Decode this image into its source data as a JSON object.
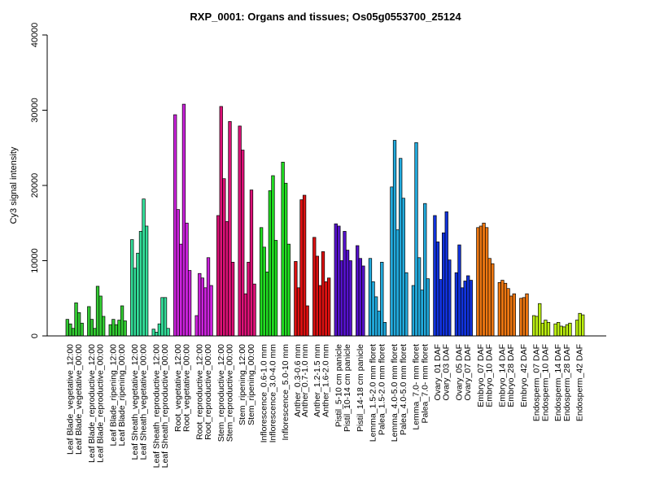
{
  "chart_data": {
    "type": "bar",
    "title": "RXP_0001: Organs and tissues; Os05g0553700_25124",
    "xlabel": "",
    "ylabel": "Cy3 signal intensity",
    "ylim": [
      0,
      40000
    ],
    "yticks": [
      0,
      10000,
      20000,
      30000,
      40000
    ],
    "grid": false,
    "legend": "none",
    "groups": [
      {
        "labels": [
          "Leaf Blade_vegetative_12:00",
          "Leaf Blade_vegetative_00:00"
        ],
        "color": "#33cc33",
        "values": [
          2200,
          1600,
          1000,
          4400,
          3100,
          1700
        ]
      },
      {
        "labels": [
          "Leaf Blade_reproductive_12:00",
          "Leaf Blade_reproductive_00:00"
        ],
        "color": "#33cc33",
        "values": [
          3900,
          2200,
          1000,
          6600,
          5300,
          2600
        ]
      },
      {
        "labels": [
          "Leaf Blade_ripening_12:00",
          "Leaf Blade_ripening_00:00"
        ],
        "color": "#33cc33",
        "values": [
          1500,
          2200,
          1500,
          2100,
          4000,
          2000
        ]
      },
      {
        "labels": [
          "Leaf Sheath_vegetative_12:00",
          "Leaf Sheath_vegetative_00:00"
        ],
        "color": "#33dd99",
        "values": [
          12800,
          9000,
          11000,
          13900,
          18200,
          14600
        ]
      },
      {
        "labels": [
          "Leaf Sheath_reproductive_12:00",
          "Leaf Sheath_reproductive_00:00"
        ],
        "color": "#33dd99",
        "values": [
          900,
          500,
          1600,
          5100,
          5100,
          1000
        ]
      },
      {
        "labels": [
          "Root_vegetative_12:00",
          "Root_vegetative_00:00"
        ],
        "color": "#cc22dd",
        "values": [
          29400,
          16800,
          12200,
          30800,
          15000,
          8700
        ]
      },
      {
        "labels": [
          "Root_reproductive_12:00",
          "Root_reproductive_00:00"
        ],
        "color": "#cc22dd",
        "values": [
          2700,
          8300,
          7700,
          6400,
          10400,
          6700
        ]
      },
      {
        "labels": [
          "Stem_reproductive_12:00",
          "Stem_reproductive_00:00"
        ],
        "color": "#dd1177",
        "values": [
          16000,
          30500,
          20900,
          15200,
          28500,
          9800
        ]
      },
      {
        "labels": [
          "Stem_ripening_12:00",
          "Stem_ripening_00:00"
        ],
        "color": "#dd1177",
        "values": [
          27900,
          24700,
          5600,
          9800,
          19400,
          6900
        ]
      },
      {
        "labels": [
          "Inflorescence_0.6-1.0 mm",
          "Inflorescence_3.0-4.0 mm"
        ],
        "color": "#22dd22",
        "values": [
          14400,
          11800,
          8500,
          19300,
          21300,
          12700
        ]
      },
      {
        "labels": [
          "Inflorescence_5.0-10 mm"
        ],
        "color": "#22dd22",
        "values": [
          23100,
          20300,
          12200
        ]
      },
      {
        "labels": [
          "Anther_0.3-0.6 mm",
          "Anther_0.7-1.0 mm"
        ],
        "color": "#dd1111",
        "values": [
          9900,
          6400,
          18100,
          18700,
          4000
        ]
      },
      {
        "labels": [
          "Anther_1.2-1.5 mm",
          "Anther_1.6-2.0 mm"
        ],
        "color": "#dd1111",
        "values": [
          13100,
          10600,
          6700,
          11200,
          7200,
          7700
        ]
      },
      {
        "labels": [
          "Pistil_5-10 cm panicle",
          "Pistil_10-14 cm panicle"
        ],
        "color": "#5511cc",
        "values": [
          14900,
          14600,
          10000,
          13900,
          11400,
          10000
        ]
      },
      {
        "labels": [
          "Pistil_14-18 cm panicle"
        ],
        "color": "#5511cc",
        "values": [
          12000,
          10300,
          9300
        ]
      },
      {
        "labels": [
          "Lemma_1.5-2.0 mm floret",
          "Palea_1.5-2.0 mm floret"
        ],
        "color": "#22aadd",
        "values": [
          10300,
          7200,
          5200,
          3300,
          9800,
          1800
        ]
      },
      {
        "labels": [
          "Lemma_4.0-5.0 mm floret",
          "Palea_4.0-5.0 mm floret"
        ],
        "color": "#22aadd",
        "values": [
          19800,
          26000,
          14100,
          23600,
          18300,
          8400
        ]
      },
      {
        "labels": [
          "Lemma_7.0- mm floret",
          "Palea_7.0- mm floret"
        ],
        "color": "#22aadd",
        "values": [
          6700,
          25700,
          10400,
          6100,
          17600,
          7600
        ]
      },
      {
        "labels": [
          "Ovary_01 DAF",
          "Ovary_03 DAF"
        ],
        "color": "#1133dd",
        "values": [
          16000,
          12500,
          7500,
          13700,
          16500,
          10100
        ]
      },
      {
        "labels": [
          "Ovary_05 DAF",
          "Ovary_07 DAF"
        ],
        "color": "#1133dd",
        "values": [
          8400,
          12100,
          6400,
          7300,
          8000,
          7400
        ]
      },
      {
        "labels": [
          "Embryo_07 DAF",
          "Embryo_10 DAF"
        ],
        "color": "#ee7711",
        "values": [
          14400,
          14600,
          15000,
          14400,
          10300,
          9600
        ]
      },
      {
        "labels": [
          "Embryo_14 DAF",
          "Embryo_28 DAF"
        ],
        "color": "#ee7711",
        "values": [
          7100,
          7400,
          7000,
          6300,
          5300,
          5600
        ]
      },
      {
        "labels": [
          "Embryo_42 DAF"
        ],
        "color": "#ee7711",
        "values": [
          5000,
          5100,
          5600
        ]
      },
      {
        "labels": [
          "Endosperm_07 DAF",
          "Endosperm_10 DAF"
        ],
        "color": "#bbee11",
        "values": [
          2700,
          2600,
          4300,
          1700,
          2100,
          1800
        ]
      },
      {
        "labels": [
          "Endosperm_14 DAF",
          "Endosperm_28 DAF"
        ],
        "color": "#bbee11",
        "values": [
          1600,
          1800,
          1300,
          1200,
          1500,
          1700
        ]
      },
      {
        "labels": [
          "Endosperm_42 DAF"
        ],
        "color": "#bbee11",
        "values": [
          2100,
          3000,
          2800
        ]
      }
    ]
  }
}
